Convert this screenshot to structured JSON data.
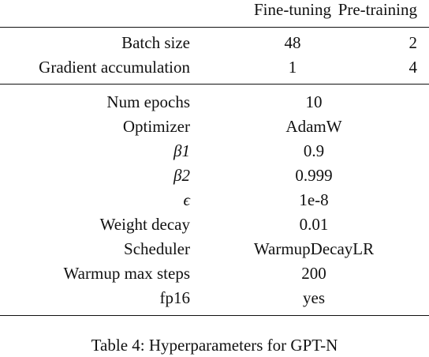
{
  "table": {
    "header": {
      "col1": "Fine-tuning",
      "col2": "Pre-training"
    },
    "group1": [
      {
        "label": "Batch size",
        "fine_tuning": "48",
        "pre_training": "2"
      },
      {
        "label": "Gradient accumulation",
        "fine_tuning": "1",
        "pre_training": "4"
      }
    ],
    "group2": [
      {
        "label": "Num epochs",
        "value": "10"
      },
      {
        "label": "Optimizer",
        "value": "AdamW"
      },
      {
        "label": "β1",
        "value": "0.9"
      },
      {
        "label": "β2",
        "value": "0.999"
      },
      {
        "label": "ϵ",
        "value": "1e-8"
      },
      {
        "label": "Weight decay",
        "value": "0.01"
      },
      {
        "label": "Scheduler",
        "value": "WarmupDecayLR"
      },
      {
        "label": "Warmup max steps",
        "value": "200"
      },
      {
        "label": "fp16",
        "value": "yes"
      }
    ]
  },
  "caption": "Table 4: Hyperparameters for GPT-N"
}
